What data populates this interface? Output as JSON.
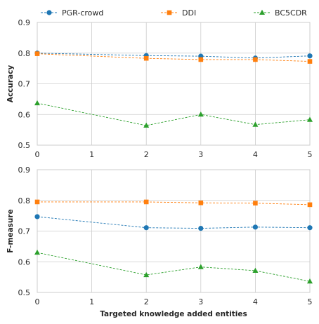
{
  "chart_data": {
    "type": "line",
    "legend": {
      "placement": "top",
      "entries": [
        {
          "name": "PGR-crowd",
          "color": "#1f77b4",
          "marker": "circle"
        },
        {
          "name": "DDI",
          "color": "#ff7f0e",
          "marker": "square"
        },
        {
          "name": "BC5CDR",
          "color": "#2ca02c",
          "marker": "triangle"
        }
      ]
    },
    "xlabel": "Targeted knowledge added entities",
    "x_ticks": [
      "0",
      "1",
      "2",
      "3",
      "4",
      "5"
    ],
    "grid": true,
    "panels": [
      {
        "ylabel": "Accuracy",
        "xlim": [
          0,
          5
        ],
        "ylim": [
          0.5,
          0.9
        ],
        "y_ticks": [
          "0.5",
          "0.6",
          "0.7",
          "0.8",
          "0.9"
        ],
        "x": [
          0,
          2,
          3,
          4,
          5
        ],
        "series": [
          {
            "name": "PGR-crowd",
            "values": [
              0.8,
              0.792,
              0.79,
              0.784,
              0.791
            ]
          },
          {
            "name": "DDI",
            "values": [
              0.798,
              0.783,
              0.779,
              0.779,
              0.773
            ]
          },
          {
            "name": "BC5CDR",
            "values": [
              0.637,
              0.564,
              0.6,
              0.567,
              0.583
            ]
          }
        ]
      },
      {
        "ylabel": "F-measure",
        "xlim": [
          0,
          5
        ],
        "ylim": [
          0.5,
          0.9
        ],
        "y_ticks": [
          "0.5",
          "0.6",
          "0.7",
          "0.8",
          "0.9"
        ],
        "x": [
          0,
          2,
          3,
          4,
          5
        ],
        "series": [
          {
            "name": "PGR-crowd",
            "values": [
              0.747,
              0.711,
              0.709,
              0.713,
              0.711
            ]
          },
          {
            "name": "DDI",
            "values": [
              0.795,
              0.795,
              0.792,
              0.791,
              0.786
            ]
          },
          {
            "name": "BC5CDR",
            "values": [
              0.63,
              0.557,
              0.583,
              0.571,
              0.536
            ]
          }
        ]
      }
    ]
  }
}
